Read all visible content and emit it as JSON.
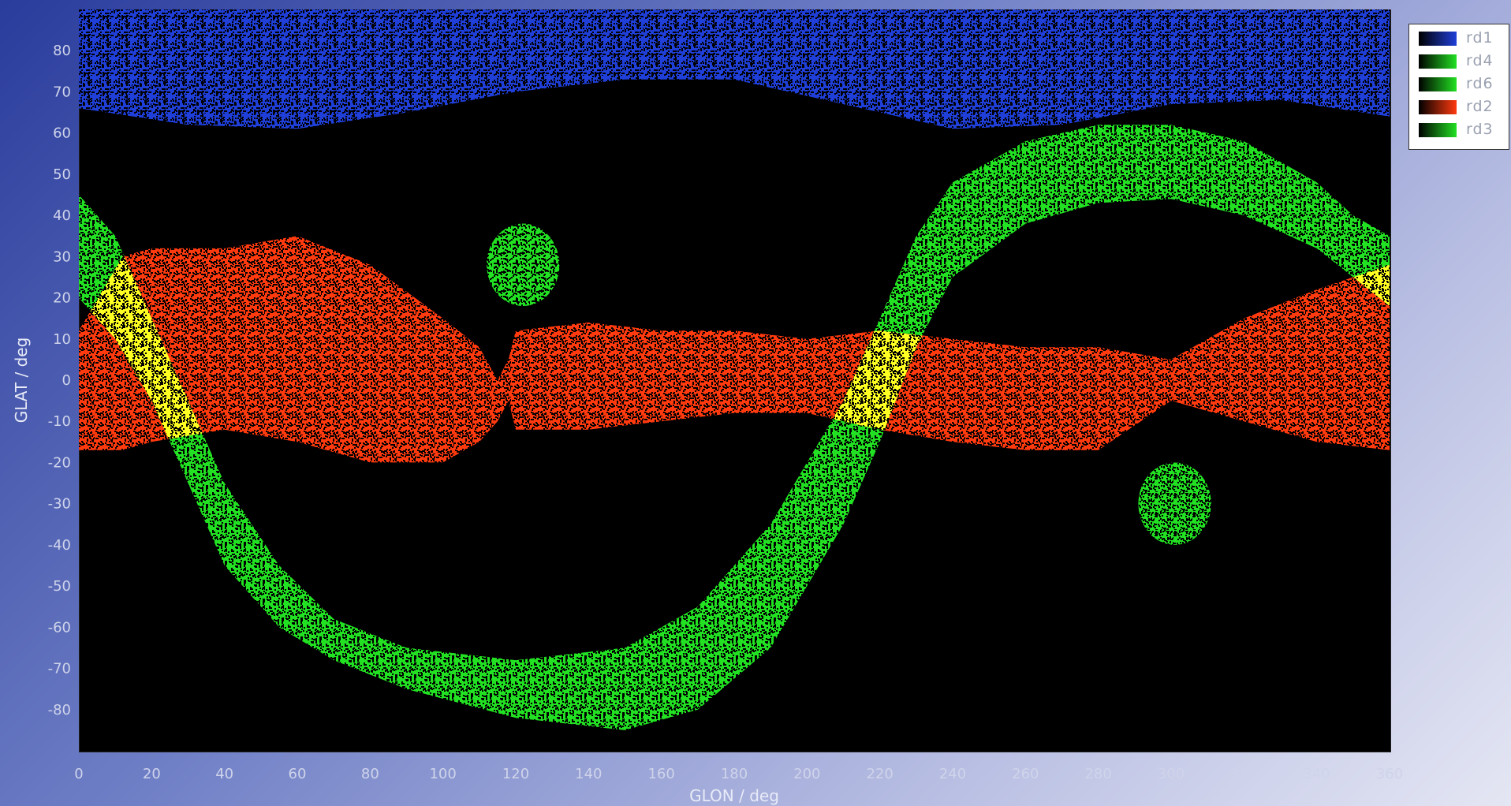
{
  "chart_data": {
    "type": "scatter",
    "xlabel": "GLON / deg",
    "ylabel": "GLAT / deg",
    "xlim": [
      0,
      360
    ],
    "ylim": [
      -90,
      90
    ],
    "xticks": [
      "0",
      "20",
      "40",
      "60",
      "80",
      "100",
      "120",
      "140",
      "160",
      "180",
      "200",
      "220",
      "240",
      "260",
      "280",
      "300",
      "320",
      "340",
      "360"
    ],
    "yticks": [
      "80",
      "70",
      "60",
      "50",
      "40",
      "30",
      "20",
      "10",
      "0",
      "-10",
      "-20",
      "-30",
      "-40",
      "-50",
      "-60",
      "-70",
      "-80"
    ],
    "legend_position": "outside-top-right",
    "series": [
      {
        "name": "rd1",
        "color": "#1f3fd8",
        "shape": "band",
        "x": [
          0,
          30,
          60,
          90,
          120,
          150,
          180,
          210,
          240,
          270,
          300,
          330,
          360
        ],
        "y_low": [
          66,
          62,
          61,
          65,
          70,
          73,
          73,
          67,
          61,
          62,
          67,
          68,
          64
        ],
        "y_high": [
          90,
          90,
          90,
          90,
          90,
          90,
          90,
          90,
          90,
          90,
          90,
          90,
          90
        ]
      },
      {
        "name": "rd4",
        "color": "#22e022",
        "shape": "circle",
        "center": [
          122,
          28
        ],
        "radius": 10
      },
      {
        "name": "rd6",
        "color": "#22e022",
        "shape": "circle",
        "center": [
          301,
          -30
        ],
        "radius": 10
      },
      {
        "name": "rd2",
        "color": "#ff3a0f",
        "shape": "band",
        "x": [
          0,
          12,
          20,
          40,
          60,
          80,
          100,
          110,
          115,
          118,
          120,
          140,
          160,
          180,
          200,
          220,
          240,
          260,
          280,
          300,
          320,
          340,
          360
        ],
        "y_low": [
          -17,
          -17,
          -15,
          -12,
          -15,
          -20,
          -20,
          -15,
          -10,
          -5,
          -12,
          -12,
          -10,
          -8,
          -8,
          -12,
          -15,
          -17,
          -17,
          -5,
          -10,
          -15,
          -17
        ],
        "y_high": [
          12,
          30,
          32,
          32,
          35,
          28,
          15,
          8,
          0,
          5,
          12,
          14,
          12,
          12,
          10,
          12,
          10,
          8,
          8,
          5,
          15,
          22,
          28
        ]
      },
      {
        "name": "rd3",
        "color": "#22e022",
        "shape": "band",
        "x": [
          0,
          10,
          20,
          30,
          40,
          55,
          70,
          90,
          120,
          150,
          170,
          190,
          200,
          210,
          220,
          230,
          240,
          260,
          280,
          300,
          320,
          340,
          350,
          360
        ],
        "y_low": [
          20,
          10,
          -5,
          -25,
          -45,
          -60,
          -68,
          -75,
          -82,
          -85,
          -80,
          -65,
          -50,
          -35,
          -15,
          8,
          25,
          38,
          43,
          44,
          40,
          32,
          25,
          18
        ],
        "y_high": [
          45,
          35,
          15,
          -5,
          -25,
          -45,
          -58,
          -65,
          -68,
          -65,
          -55,
          -35,
          -20,
          -5,
          15,
          35,
          48,
          58,
          62,
          62,
          58,
          48,
          40,
          35
        ]
      }
    ]
  }
}
